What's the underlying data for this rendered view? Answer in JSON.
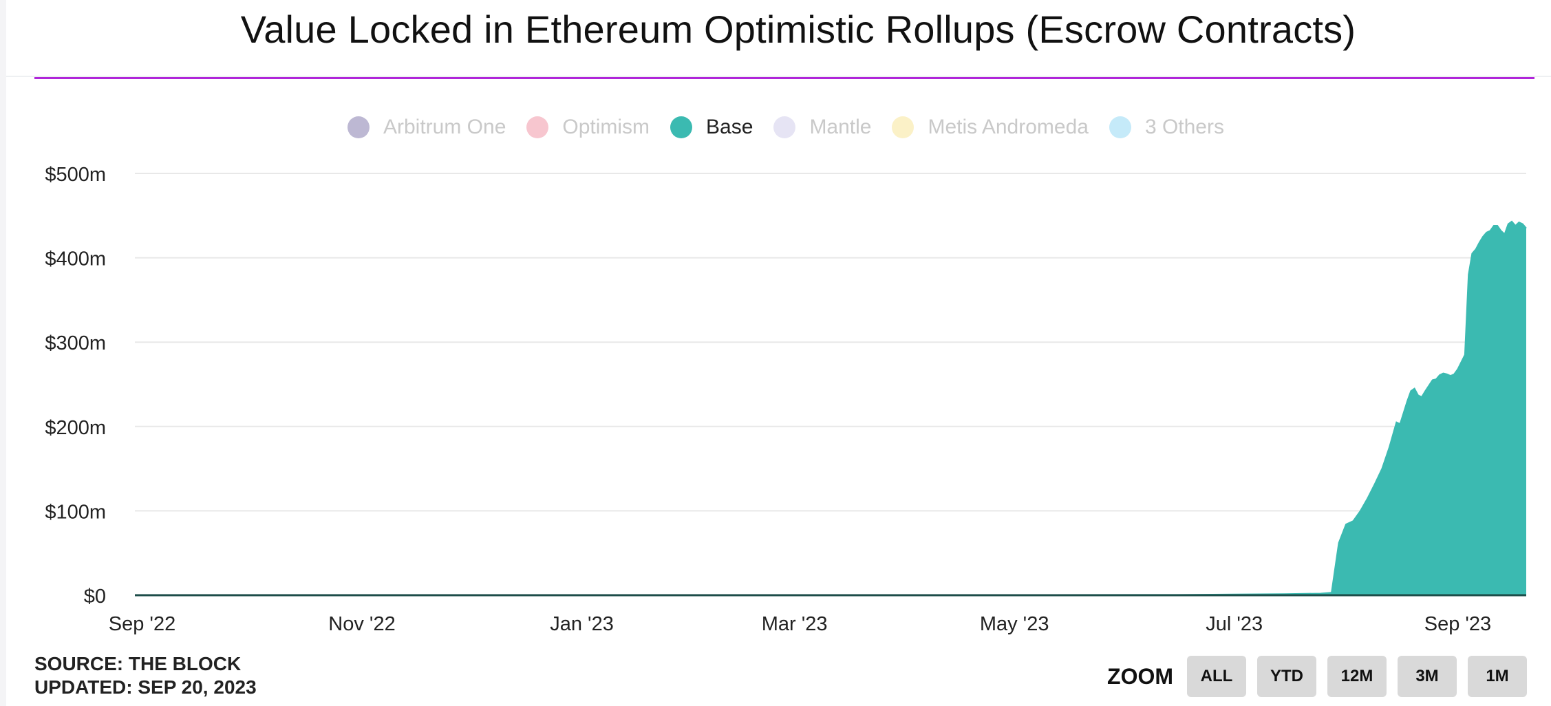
{
  "title": "Value Locked in Ethereum Optimistic Rollups (Escrow Contracts)",
  "colors": {
    "accent_rule": "#b026d9",
    "base_area": "#3bbab1"
  },
  "legend": [
    {
      "label": "Arbitrum One",
      "color": "#bdb8d3",
      "state": "muted"
    },
    {
      "label": "Optimism",
      "color": "#f7c6cf",
      "state": "muted"
    },
    {
      "label": "Base",
      "color": "#3bbab1",
      "state": "active"
    },
    {
      "label": "Mantle",
      "color": "#e6e4f4",
      "state": "muted"
    },
    {
      "label": "Metis Andromeda",
      "color": "#fbf1c7",
      "state": "muted"
    },
    {
      "label": "3 Others",
      "color": "#c5eaf9",
      "state": "muted"
    }
  ],
  "chart_data": {
    "type": "area",
    "title": "Value Locked in Ethereum Optimistic Rollups (Escrow Contracts)",
    "xlabel": "",
    "ylabel": "",
    "ylim": [
      0,
      500
    ],
    "y_unit": "$m",
    "yticks": [
      {
        "value": 0,
        "label": "$0"
      },
      {
        "value": 100,
        "label": "$100m"
      },
      {
        "value": 200,
        "label": "$200m"
      },
      {
        "value": 300,
        "label": "$300m"
      },
      {
        "value": 400,
        "label": "$400m"
      },
      {
        "value": 500,
        "label": "$500m"
      }
    ],
    "xlim": [
      "2022-08-30",
      "2023-09-20"
    ],
    "xticks": [
      {
        "date": "2022-09-01",
        "label": "Sep '22"
      },
      {
        "date": "2022-11-01",
        "label": "Nov '22"
      },
      {
        "date": "2023-01-01",
        "label": "Jan '23"
      },
      {
        "date": "2023-03-01",
        "label": "Mar '23"
      },
      {
        "date": "2023-05-01",
        "label": "May '23"
      },
      {
        "date": "2023-07-01",
        "label": "Jul '23"
      },
      {
        "date": "2023-09-01",
        "label": "Sep '23"
      }
    ],
    "grid": true,
    "legend_position": "top-center",
    "series": [
      {
        "name": "Base",
        "color": "#3bbab1",
        "points": [
          [
            "2022-08-30",
            0
          ],
          [
            "2023-06-15",
            0.5
          ],
          [
            "2023-07-01",
            1
          ],
          [
            "2023-07-15",
            1.5
          ],
          [
            "2023-07-25",
            2
          ],
          [
            "2023-07-28",
            3
          ],
          [
            "2023-07-30",
            62
          ],
          [
            "2023-08-01",
            84
          ],
          [
            "2023-08-03",
            88
          ],
          [
            "2023-08-05",
            100
          ],
          [
            "2023-08-07",
            115
          ],
          [
            "2023-08-09",
            132
          ],
          [
            "2023-08-11",
            150
          ],
          [
            "2023-08-13",
            175
          ],
          [
            "2023-08-15",
            205
          ],
          [
            "2023-08-16",
            203
          ],
          [
            "2023-08-18",
            230
          ],
          [
            "2023-08-19",
            242
          ],
          [
            "2023-08-20",
            245
          ],
          [
            "2023-08-21",
            237
          ],
          [
            "2023-08-22",
            235
          ],
          [
            "2023-08-23",
            242
          ],
          [
            "2023-08-25",
            255
          ],
          [
            "2023-08-26",
            256
          ],
          [
            "2023-08-27",
            261
          ],
          [
            "2023-08-28",
            263
          ],
          [
            "2023-08-29",
            262
          ],
          [
            "2023-08-30",
            260
          ],
          [
            "2023-08-31",
            262
          ],
          [
            "2023-09-01",
            268
          ],
          [
            "2023-09-03",
            285
          ],
          [
            "2023-09-04",
            380
          ],
          [
            "2023-09-05",
            405
          ],
          [
            "2023-09-06",
            410
          ],
          [
            "2023-09-07",
            418
          ],
          [
            "2023-09-08",
            425
          ],
          [
            "2023-09-09",
            430
          ],
          [
            "2023-09-10",
            432
          ],
          [
            "2023-09-11",
            438
          ],
          [
            "2023-09-12",
            438
          ],
          [
            "2023-09-13",
            432
          ],
          [
            "2023-09-14",
            428
          ],
          [
            "2023-09-15",
            440
          ],
          [
            "2023-09-16",
            443
          ],
          [
            "2023-09-17",
            438
          ],
          [
            "2023-09-18",
            442
          ],
          [
            "2023-09-19",
            440
          ],
          [
            "2023-09-20",
            435
          ]
        ]
      }
    ]
  },
  "footer": {
    "source": "SOURCE: THE BLOCK",
    "updated": "UPDATED: SEP 20, 2023"
  },
  "zoom": {
    "label": "ZOOM",
    "buttons": [
      "ALL",
      "YTD",
      "12M",
      "3M",
      "1M"
    ]
  }
}
